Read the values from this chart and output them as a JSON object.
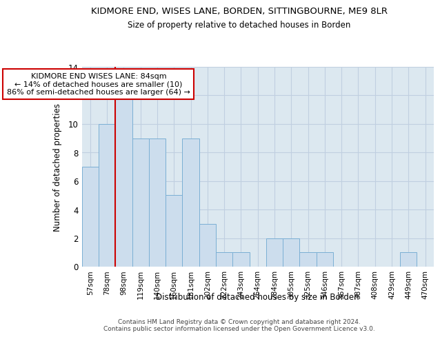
{
  "title": "KIDMORE END, WISES LANE, BORDEN, SITTINGBOURNE, ME9 8LR",
  "subtitle": "Size of property relative to detached houses in Borden",
  "xlabel": "Distribution of detached houses by size in Borden",
  "ylabel": "Number of detached properties",
  "bar_labels": [
    "57sqm",
    "78sqm",
    "98sqm",
    "119sqm",
    "140sqm",
    "160sqm",
    "181sqm",
    "202sqm",
    "222sqm",
    "243sqm",
    "264sqm",
    "284sqm",
    "305sqm",
    "325sqm",
    "346sqm",
    "367sqm",
    "387sqm",
    "408sqm",
    "429sqm",
    "449sqm",
    "470sqm"
  ],
  "bar_values": [
    7,
    10,
    12,
    9,
    9,
    5,
    9,
    3,
    1,
    1,
    0,
    2,
    2,
    1,
    1,
    0,
    0,
    0,
    0,
    1,
    0
  ],
  "bar_color": "#ccdded",
  "bar_edge_color": "#7aafd4",
  "grid_color": "#c0cfe0",
  "vline_x_index": 1,
  "vline_color": "#cc0000",
  "annotation_text": "KIDMORE END WISES LANE: 84sqm\n← 14% of detached houses are smaller (10)\n86% of semi-detached houses are larger (64) →",
  "annotation_box_color": "white",
  "annotation_box_edge": "#cc0000",
  "ylim": [
    0,
    14
  ],
  "yticks": [
    0,
    2,
    4,
    6,
    8,
    10,
    12,
    14
  ],
  "footnote": "Contains HM Land Registry data © Crown copyright and database right 2024.\nContains public sector information licensed under the Open Government Licence v3.0.",
  "background_color": "#dce8f0"
}
